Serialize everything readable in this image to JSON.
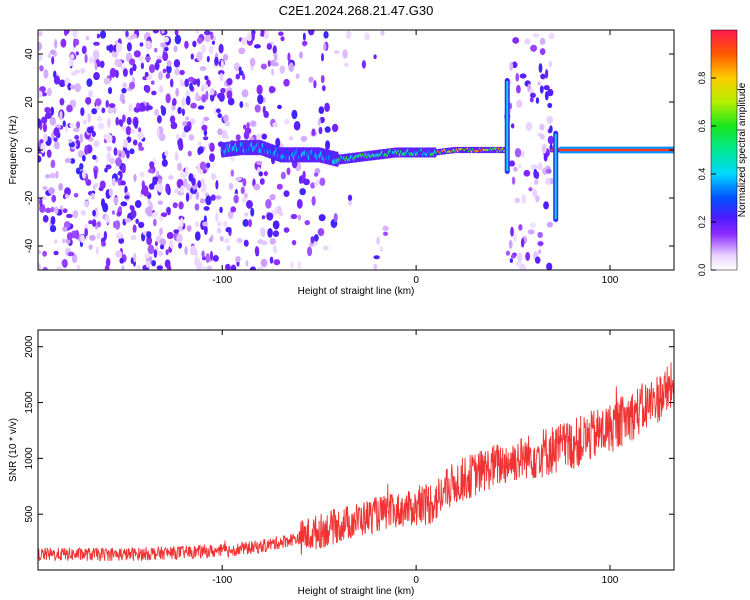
{
  "figure_title": "C2E1.2024.268.21.47.G30",
  "chart_data": [
    {
      "type": "heatmap",
      "title": "C2E1.2024.268.21.47.G30",
      "xlabel": "Height of straight line (km)",
      "ylabel": "Frequency (Hz)",
      "xlim": [
        -195,
        133
      ],
      "ylim": [
        -50,
        50
      ],
      "x_ticks": [
        -100,
        0,
        100
      ],
      "y_ticks": [
        -40,
        -20,
        0,
        20,
        40
      ],
      "colorbar": {
        "label": "Normalized spectral amplitude",
        "range": [
          0.0,
          1.0
        ],
        "ticks": [
          0.0,
          0.2,
          0.4,
          0.6,
          0.8
        ]
      },
      "features": {
        "noise_region_x": [
          -195,
          -45
        ],
        "ridge_x": [
          -100,
          133
        ],
        "ridge_frequency_hz": [
          {
            "x": -100,
            "y": 0
          },
          {
            "x": -90,
            "y": 1
          },
          {
            "x": -80,
            "y": 1
          },
          {
            "x": -70,
            "y": -2
          },
          {
            "x": -60,
            "y": -2
          },
          {
            "x": -50,
            "y": -2
          },
          {
            "x": -40,
            "y": -4
          },
          {
            "x": -30,
            "y": -3
          },
          {
            "x": -20,
            "y": -2
          },
          {
            "x": -10,
            "y": -1
          },
          {
            "x": 0,
            "y": -1
          },
          {
            "x": 10,
            "y": -1
          },
          {
            "x": 20,
            "y": 0
          },
          {
            "x": 30,
            "y": 0
          },
          {
            "x": 45,
            "y": 0
          },
          {
            "x": 73,
            "y": 0
          },
          {
            "x": 100,
            "y": 0
          },
          {
            "x": 133,
            "y": 0
          }
        ],
        "vertical_bands_x": [
          [
            47,
            70
          ]
        ],
        "vertical_spikes": [
          {
            "x": 47,
            "y_range": [
              -10,
              30
            ]
          },
          {
            "x": 72,
            "y_range": [
              -30,
              8
            ]
          }
        ]
      }
    },
    {
      "type": "line",
      "xlabel": "Height of straight line (km)",
      "ylabel": "SNR (10 * v/v)",
      "xlim": [
        -195,
        133
      ],
      "ylim": [
        0,
        2150
      ],
      "x_ticks": [
        -100,
        0,
        100
      ],
      "y_ticks": [
        500,
        1000,
        1500,
        2000
      ],
      "color": "#f03232",
      "trend": [
        {
          "x": -195,
          "y": 140
        },
        {
          "x": -150,
          "y": 140
        },
        {
          "x": -100,
          "y": 170
        },
        {
          "x": -80,
          "y": 210
        },
        {
          "x": -60,
          "y": 290
        },
        {
          "x": -40,
          "y": 400
        },
        {
          "x": -20,
          "y": 500
        },
        {
          "x": 0,
          "y": 560
        },
        {
          "x": 10,
          "y": 620
        },
        {
          "x": 20,
          "y": 780
        },
        {
          "x": 40,
          "y": 930
        },
        {
          "x": 60,
          "y": 1030
        },
        {
          "x": 80,
          "y": 1120
        },
        {
          "x": 100,
          "y": 1270
        },
        {
          "x": 120,
          "y": 1480
        },
        {
          "x": 133,
          "y": 1650
        }
      ]
    }
  ]
}
